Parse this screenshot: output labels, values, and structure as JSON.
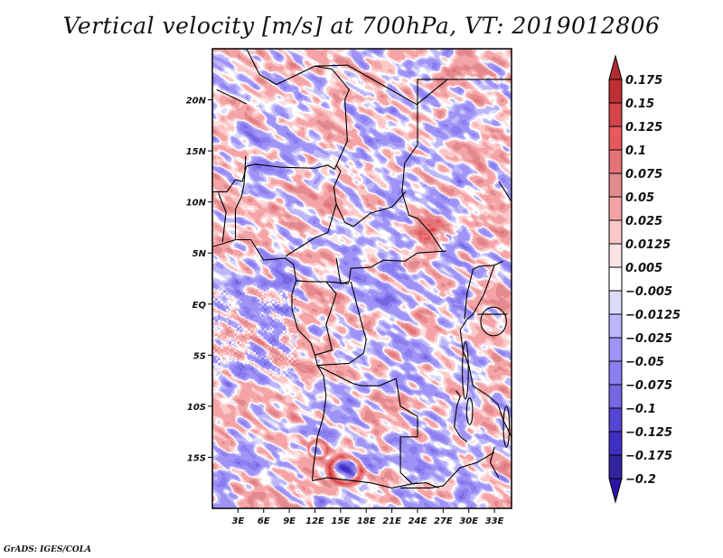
{
  "title": "Vertical velocity [m/s] at 700hPa, VT: 2019012806",
  "credit": "GrADS: IGES/COLA",
  "chart_data": {
    "type": "heatmap",
    "title": "Vertical velocity [m/s] at 700hPa, VT: 2019012806",
    "variable": "Vertical velocity",
    "units": "m/s",
    "level": "700hPa",
    "valid_time": "2019012806",
    "xlabel": "",
    "ylabel": "",
    "x_range_deg": [
      0,
      35
    ],
    "y_range_deg": [
      -20,
      25
    ],
    "x_ticks": [
      {
        "value": 3,
        "label": "3E"
      },
      {
        "value": 6,
        "label": "6E"
      },
      {
        "value": 9,
        "label": "9E"
      },
      {
        "value": 12,
        "label": "12E"
      },
      {
        "value": 15,
        "label": "15E"
      },
      {
        "value": 18,
        "label": "18E"
      },
      {
        "value": 21,
        "label": "21E"
      },
      {
        "value": 24,
        "label": "24E"
      },
      {
        "value": 27,
        "label": "27E"
      },
      {
        "value": 30,
        "label": "30E"
      },
      {
        "value": 33,
        "label": "33E"
      }
    ],
    "y_ticks": [
      {
        "value": 20,
        "label": "20N"
      },
      {
        "value": 15,
        "label": "15N"
      },
      {
        "value": 10,
        "label": "10N"
      },
      {
        "value": 5,
        "label": "5N"
      },
      {
        "value": 0,
        "label": "EQ"
      },
      {
        "value": -5,
        "label": "5S"
      },
      {
        "value": -10,
        "label": "10S"
      },
      {
        "value": -15,
        "label": "15S"
      }
    ],
    "colorbar": {
      "orientation": "vertical",
      "placement": "right",
      "extend": "both",
      "levels": [
        {
          "label": "0.175",
          "value": 0.175
        },
        {
          "label": "0.15",
          "value": 0.15
        },
        {
          "label": "0.125",
          "value": 0.125
        },
        {
          "label": "0.1",
          "value": 0.1
        },
        {
          "label": "0.075",
          "value": 0.075
        },
        {
          "label": "0.05",
          "value": 0.05
        },
        {
          "label": "0.025",
          "value": 0.025
        },
        {
          "label": "0.0125",
          "value": 0.0125
        },
        {
          "label": "0.005",
          "value": 0.005
        },
        {
          "label": "−0.005",
          "value": -0.005
        },
        {
          "label": "−0.0125",
          "value": -0.0125
        },
        {
          "label": "−0.025",
          "value": -0.025
        },
        {
          "label": "−0.05",
          "value": -0.05
        },
        {
          "label": "−0.075",
          "value": -0.075
        },
        {
          "label": "−0.1",
          "value": -0.1
        },
        {
          "label": "−0.125",
          "value": -0.125
        },
        {
          "label": "−0.175",
          "value": -0.175
        },
        {
          "label": "−0.2",
          "value": -0.2
        }
      ],
      "colors_top_to_bottom": [
        "#b02a2e",
        "#bf2f33",
        "#d44448",
        "#e65a5e",
        "#e57479",
        "#e28a8e",
        "#f4a4a6",
        "#fbc8c9",
        "#fde3e4",
        "#ffffff",
        "#dcdcfa",
        "#bdb6fa",
        "#a093f6",
        "#8a7ff0",
        "#7567e2",
        "#5346d4",
        "#3f30c4",
        "#30249e",
        "#2a13a6"
      ]
    },
    "notable_features": [
      {
        "description": "Strong ascent (red) cluster over South Sudan / CAR border",
        "lon_range": [
          23,
          30
        ],
        "lat_range": [
          5,
          9
        ]
      },
      {
        "description": "Ring of strong ascent around strong descent over southern Angola",
        "lon_range": [
          13,
          18
        ],
        "lat_range": [
          -18,
          -14
        ]
      },
      {
        "description": "Small-scale checkerboard noise over Gulf of Guinea",
        "lon_range": [
          0,
          10
        ],
        "lat_range": [
          -6,
          1
        ]
      }
    ]
  }
}
